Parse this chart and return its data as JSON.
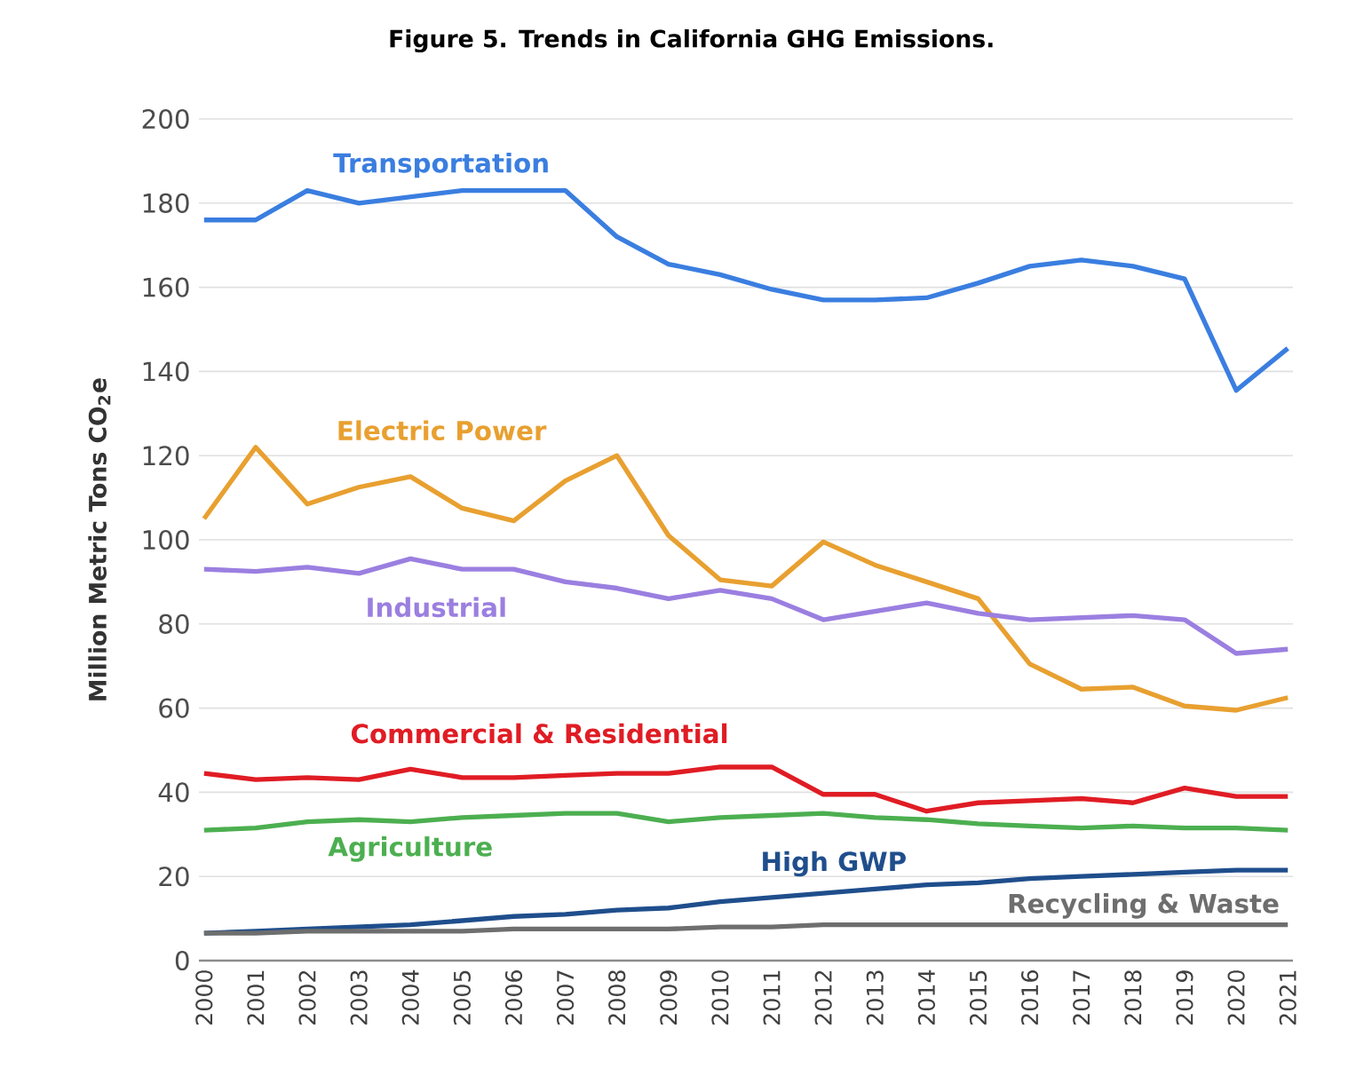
{
  "chart_data": {
    "type": "line",
    "title": "Figure 5. Trends in California GHG Emissions.",
    "ylabel": "Million Metric Tons CO$_{2}$e",
    "categories": [
      "2000",
      "2001",
      "2002",
      "2003",
      "2004",
      "2005",
      "2006",
      "2007",
      "2008",
      "2009",
      "2010",
      "2011",
      "2012",
      "2013",
      "2014",
      "2015",
      "2016",
      "2017",
      "2018",
      "2019",
      "2020",
      "2021"
    ],
    "ylim": [
      0,
      200
    ],
    "yticks": [
      0,
      20,
      40,
      60,
      80,
      100,
      120,
      140,
      160,
      180,
      200
    ],
    "grid": "y",
    "marker": "none",
    "line_style": "solid",
    "series": [
      {
        "name": "Transportation",
        "color": "#3a7ee0",
        "values": [
          176,
          176,
          183,
          180,
          181.5,
          183,
          183,
          183,
          172,
          165.5,
          163,
          159.5,
          157,
          157,
          157.5,
          161,
          165,
          166.5,
          165,
          162,
          135.5,
          145.5
        ]
      },
      {
        "name": "Electric Power",
        "color": "#e8a030",
        "values": [
          105,
          122,
          108.5,
          112.5,
          115,
          107.5,
          104.5,
          114,
          120,
          101,
          90.5,
          89,
          99.5,
          94,
          90,
          86,
          70.5,
          64.5,
          65,
          60.5,
          59.5,
          62.5
        ]
      },
      {
        "name": "Industrial",
        "color": "#9b7fe0",
        "values": [
          93,
          92.5,
          93.5,
          92,
          95.5,
          93,
          93,
          90,
          88.5,
          86,
          88,
          86,
          81,
          83,
          85,
          82.5,
          81,
          81.5,
          82,
          81,
          73,
          74
        ]
      },
      {
        "name": "Commercial & Residential",
        "color": "#e01c24",
        "values": [
          44.5,
          43,
          43.5,
          43,
          45.5,
          43.5,
          43.5,
          44,
          44.5,
          44.5,
          46,
          46,
          39.5,
          39.5,
          35.5,
          37.5,
          38,
          38.5,
          37.5,
          41,
          39,
          39
        ]
      },
      {
        "name": "Agriculture",
        "color": "#4caf50",
        "values": [
          31,
          31.5,
          33,
          33.5,
          33,
          34,
          34.5,
          35,
          35,
          33,
          34,
          34.5,
          35,
          34,
          33.5,
          32.5,
          32,
          31.5,
          32,
          31.5,
          31.5,
          31
        ]
      },
      {
        "name": "High GWP",
        "color": "#1f4e8c",
        "values": [
          6.5,
          7,
          7.5,
          8,
          8.5,
          9.5,
          10.5,
          11,
          12,
          12.5,
          14,
          15,
          16,
          17,
          18,
          18.5,
          19.5,
          20,
          20.5,
          21,
          21.5,
          21.5
        ]
      },
      {
        "name": "Recycling & Waste",
        "color": "#6e6e6e",
        "values": [
          6.5,
          6.5,
          7,
          7,
          7,
          7,
          7.5,
          7.5,
          7.5,
          7.5,
          8,
          8,
          8.5,
          8.5,
          8.5,
          8.5,
          8.5,
          8.5,
          8.5,
          8.5,
          8.5,
          8.5
        ]
      }
    ]
  }
}
